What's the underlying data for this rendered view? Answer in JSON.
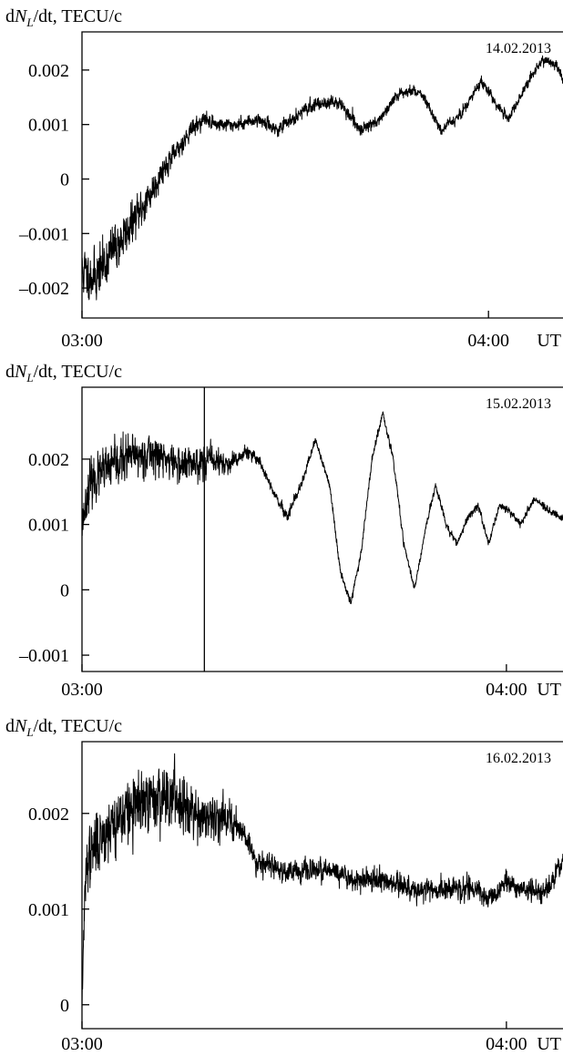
{
  "chart_data": [
    {
      "type": "line",
      "ylabel": {
        "prefix": "d",
        "italic": "N",
        "sub": "L",
        "suffix": "/dt, TECU/c"
      },
      "date_label": "14.02.2013",
      "x_unit_label": "UT",
      "x_range_min": [
        180,
        251
      ],
      "ylim": [
        -0.00255,
        0.0027
      ],
      "yticks": [
        {
          "value": -0.002,
          "label": "–0.002"
        },
        {
          "value": -0.001,
          "label": "–0.001"
        },
        {
          "value": 0,
          "label": "0"
        },
        {
          "value": 0.001,
          "label": "0.001"
        },
        {
          "value": 0.002,
          "label": "0.002"
        }
      ],
      "xticks": [
        {
          "value": 180,
          "label": "03:00"
        },
        {
          "value": 240,
          "label": "04:00"
        }
      ],
      "series": [
        {
          "noise_seed": 11,
          "x": [
            180,
            182,
            184,
            186,
            188,
            190,
            192,
            194,
            196,
            198,
            200,
            203,
            206,
            209,
            212,
            215,
            218,
            221,
            224,
            227,
            230,
            233,
            236,
            239,
            241,
            243,
            246,
            248,
            250,
            251
          ],
          "y": [
            -0.0017,
            -0.0018,
            -0.0014,
            -0.0011,
            -0.0007,
            -0.0003,
            0.0002,
            0.0005,
            0.0009,
            0.0011,
            0.001,
            0.001,
            0.0011,
            0.0009,
            0.0012,
            0.0014,
            0.0014,
            0.0009,
            0.0011,
            0.0016,
            0.0016,
            0.0009,
            0.0012,
            0.0018,
            0.0014,
            0.0011,
            0.0018,
            0.0022,
            0.0021,
            0.0018
          ],
          "noise": [
            0.00025,
            0.00025,
            0.00025,
            0.00022,
            0.0002,
            0.00018,
            0.00012,
            0.0001,
            8e-05,
            7e-05,
            7e-05,
            6e-05,
            6e-05,
            6e-05,
            6e-05,
            6e-05,
            6e-05,
            6e-05,
            5e-05,
            5e-05,
            5e-05,
            5e-05,
            5e-05,
            5e-05,
            5e-05,
            5e-05,
            5e-05,
            5e-05,
            5e-05,
            5e-05
          ]
        }
      ]
    },
    {
      "type": "line",
      "ylabel": {
        "prefix": "d",
        "italic": "N",
        "sub": "L",
        "suffix": "/dt, TECU/c"
      },
      "date_label": "15.02.2013",
      "x_unit_label": "UT",
      "x_range_min": [
        180,
        248
      ],
      "ylim": [
        -0.00125,
        0.0031
      ],
      "yticks": [
        {
          "value": -0.001,
          "label": "–0.001"
        },
        {
          "value": 0,
          "label": "0"
        },
        {
          "value": 0.001,
          "label": "0.001"
        },
        {
          "value": 0.002,
          "label": "0.002"
        }
      ],
      "xticks": [
        {
          "value": 180,
          "label": "03:00"
        },
        {
          "value": 240,
          "label": "04:00"
        }
      ],
      "marker_x": 197.3,
      "series": [
        {
          "noise_seed": 23,
          "x": [
            180,
            181,
            183,
            186,
            190,
            194,
            198,
            201,
            203,
            205,
            207,
            209,
            211,
            213,
            215,
            216.5,
            218,
            219.5,
            221,
            222.5,
            224,
            225.5,
            227,
            228.5,
            230,
            231.5,
            233,
            234.5,
            236,
            237.5,
            239,
            240.5,
            242,
            244,
            246,
            248
          ],
          "y": [
            0.001,
            0.0016,
            0.0018,
            0.002,
            0.0021,
            0.0019,
            0.002,
            0.0019,
            0.0021,
            0.002,
            0.0015,
            0.0011,
            0.0016,
            0.0023,
            0.0016,
            0.0003,
            -0.0002,
            0.0006,
            0.002,
            0.0027,
            0.002,
            0.0007,
            0.0,
            0.0009,
            0.0016,
            0.001,
            0.0007,
            0.0011,
            0.0013,
            0.0007,
            0.0013,
            0.0012,
            0.001,
            0.0014,
            0.0012,
            0.0011
          ],
          "noise": [
            0.00015,
            0.00018,
            0.00018,
            0.00018,
            0.00016,
            0.00015,
            0.00012,
            8e-05,
            6e-05,
            5e-05,
            4e-05,
            4e-05,
            4e-05,
            3e-05,
            3e-05,
            3e-05,
            3e-05,
            3e-05,
            3e-05,
            3e-05,
            3e-05,
            3e-05,
            3e-05,
            3e-05,
            3e-05,
            3e-05,
            3e-05,
            3e-05,
            3e-05,
            3e-05,
            3e-05,
            3e-05,
            3e-05,
            3e-05,
            3e-05,
            3e-05
          ]
        }
      ]
    },
    {
      "type": "line",
      "ylabel": {
        "prefix": "d",
        "italic": "N",
        "sub": "L",
        "suffix": "/dt, TECU/c"
      },
      "date_label": "16.02.2013",
      "x_unit_label": "UT",
      "x_range_min": [
        180,
        248
      ],
      "ylim": [
        -0.00025,
        0.00275
      ],
      "yticks": [
        {
          "value": 0,
          "label": "0"
        },
        {
          "value": 0.001,
          "label": "0.001"
        },
        {
          "value": 0.002,
          "label": "0.002"
        }
      ],
      "xticks": [
        {
          "value": 180,
          "label": "03:00"
        },
        {
          "value": 240,
          "label": "04:00"
        }
      ],
      "series": [
        {
          "noise_seed": 37,
          "x": [
            180,
            180.3,
            180.7,
            181.5,
            183,
            186,
            189,
            192,
            195,
            198,
            200,
            203,
            204.5,
            206,
            208,
            211,
            215,
            219,
            223,
            227,
            231,
            235,
            238,
            240,
            242,
            244,
            245.5,
            246.5,
            248
          ],
          "y": [
            0.0,
            0.0009,
            0.0015,
            0.0016,
            0.0018,
            0.002,
            0.0021,
            0.0022,
            0.0021,
            0.0019,
            0.002,
            0.0018,
            0.0015,
            0.0015,
            0.0014,
            0.0014,
            0.0014,
            0.0013,
            0.0013,
            0.0012,
            0.0012,
            0.0012,
            0.0011,
            0.0013,
            0.0012,
            0.0012,
            0.0012,
            0.0013,
            0.0015
          ],
          "noise": [
            5e-05,
            0.00012,
            0.00015,
            0.00018,
            0.00018,
            0.00018,
            0.00018,
            0.00018,
            0.00016,
            0.00012,
            0.0001,
            8e-05,
            7e-05,
            7e-05,
            6e-05,
            6e-05,
            6e-05,
            6e-05,
            6e-05,
            6e-05,
            6e-05,
            6e-05,
            6e-05,
            6e-05,
            6e-05,
            6e-05,
            6e-05,
            6e-05,
            6e-05
          ]
        }
      ]
    }
  ]
}
